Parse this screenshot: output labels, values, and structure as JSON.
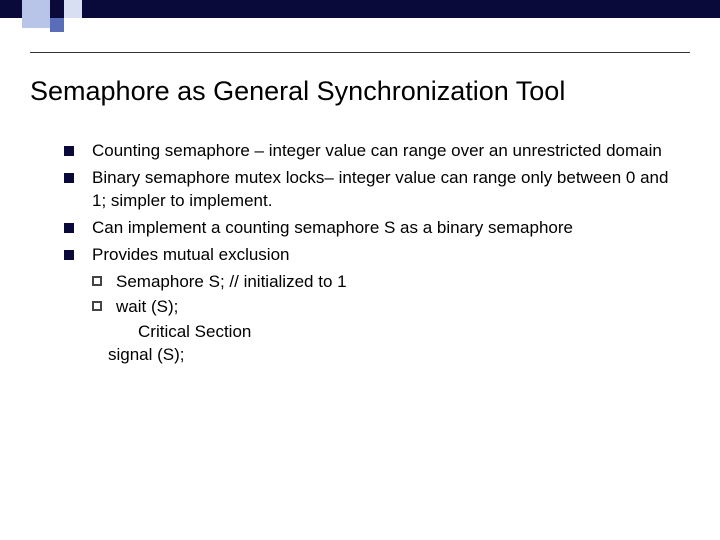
{
  "title": "Semaphore as General Synchronization Tool",
  "bullets": [
    "Counting semaphore – integer value can range over an unrestricted domain",
    "Binary semaphore mutex locks– integer value can range only between 0 and 1; simpler to implement.",
    "Can implement a counting semaphore S as a binary semaphore",
    "Provides mutual exclusion"
  ],
  "subbullets": [
    "Semaphore S;    //  initialized to 1",
    "wait (S);"
  ],
  "codelines": [
    "Critical Section",
    "signal (S);"
  ],
  "colors": {
    "darkblue": "#0a0a3a",
    "lightblue1": "#b8c4e8",
    "midblue": "#5a6db8",
    "lightblue2": "#d8dff2"
  }
}
